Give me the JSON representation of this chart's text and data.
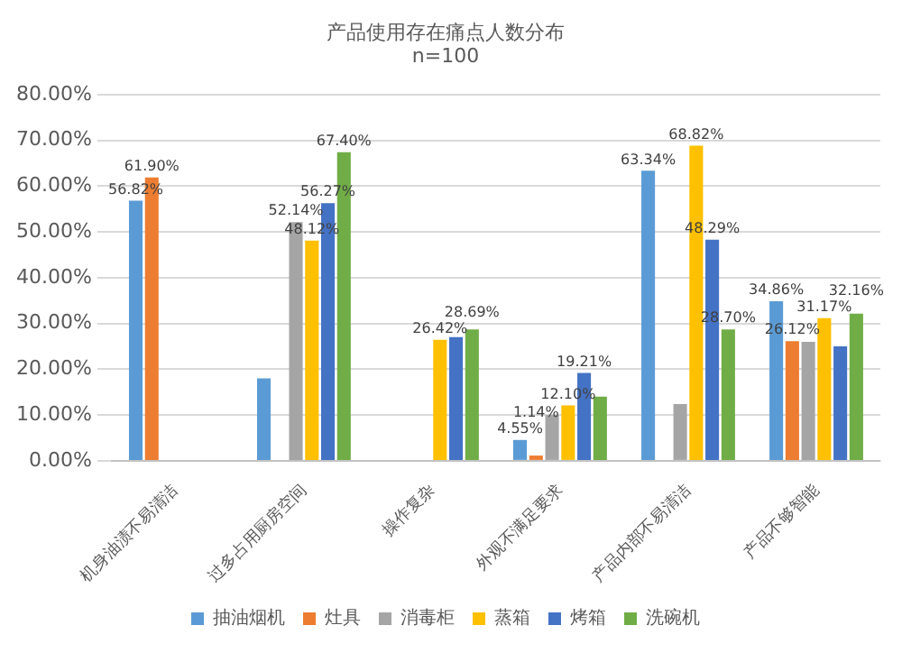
{
  "chart_data": {
    "type": "bar",
    "title": "产品使用存在痛点人数分布",
    "subtitle": "n=100",
    "categories": [
      "机身油渍不易清洁",
      "过多占用厨房空间",
      "操作复杂",
      "外观不满足要求",
      "产品内部不易清洁",
      "产品不够智能"
    ],
    "series": [
      {
        "name": "抽油烟机",
        "color": "#5b9bd5",
        "values": [
          56.82,
          18,
          null,
          4.55,
          63.34,
          34.86
        ],
        "value_labels": [
          "56.82%",
          null,
          null,
          "4.55%",
          "63.34%",
          "34.86%"
        ]
      },
      {
        "name": "灶具",
        "color": "#ed7d31",
        "values": [
          61.9,
          null,
          null,
          1.14,
          null,
          26.12
        ],
        "value_labels": [
          "61.90%",
          null,
          null,
          "1.14%",
          null,
          "26.12%"
        ]
      },
      {
        "name": "消毒柜",
        "color": "#a5a5a5",
        "values": [
          null,
          52.14,
          null,
          10,
          12.4,
          26
        ],
        "value_labels": [
          null,
          "52.14%",
          null,
          null,
          null,
          null
        ]
      },
      {
        "name": "蒸箱",
        "color": "#ffc000",
        "values": [
          null,
          48.12,
          26.42,
          12.1,
          68.82,
          31.17
        ],
        "value_labels": [
          null,
          "48.12%",
          "26.42%",
          "12.10%",
          "68.82%",
          "31.17%"
        ]
      },
      {
        "name": "烤箱",
        "color": "#4472c4",
        "values": [
          null,
          56.27,
          27,
          19.21,
          48.29,
          25
        ],
        "value_labels": [
          null,
          "56.27%",
          null,
          "19.21%",
          "48.29%",
          null
        ]
      },
      {
        "name": "洗碗机",
        "color": "#70ad47",
        "values": [
          null,
          67.4,
          28.69,
          14,
          28.7,
          32.16
        ],
        "value_labels": [
          null,
          "67.40%",
          "28.69%",
          null,
          "28.70%",
          "32.16%"
        ]
      }
    ],
    "ylim": [
      0,
      80
    ],
    "yticks": [
      {
        "value": 0,
        "label": "0.00%"
      },
      {
        "value": 10,
        "label": "10.00%"
      },
      {
        "value": 20,
        "label": "20.00%"
      },
      {
        "value": 30,
        "label": "30.00%"
      },
      {
        "value": 40,
        "label": "40.00%"
      },
      {
        "value": 50,
        "label": "50.00%"
      },
      {
        "value": 60,
        "label": "60.00%"
      },
      {
        "value": 70,
        "label": "70.00%"
      },
      {
        "value": 80,
        "label": "80.00%"
      }
    ],
    "grid": "y",
    "legend": "bottom"
  }
}
